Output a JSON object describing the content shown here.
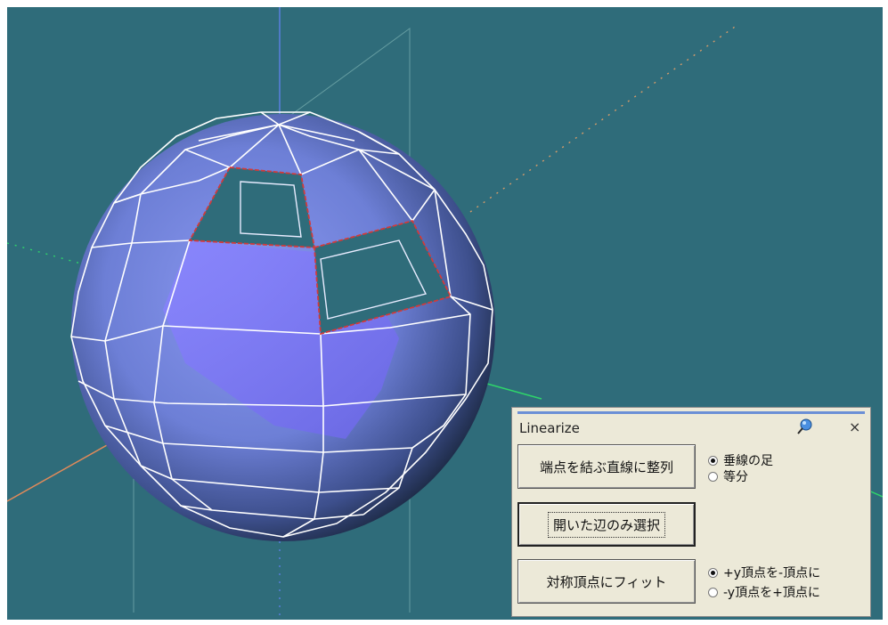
{
  "panel": {
    "title": "Linearize",
    "buttons": {
      "align": "端点を結ぶ直線に整列",
      "select_open": "開いた辺のみ選択",
      "fit_symmetric": "対称頂点にフィット"
    },
    "align_mode": {
      "options": [
        "垂線の足",
        "等分"
      ],
      "selected": 0
    },
    "fit_mode": {
      "options": [
        "+y頂点を-頂点に",
        "-y頂点を+頂点に"
      ],
      "selected": 0
    }
  },
  "icons": {
    "pin": "pin-icon",
    "close": "close-icon",
    "close_glyph": "×"
  },
  "colors": {
    "viewport_bg": "#2f6c7a",
    "mesh_fill": "#7b86e8",
    "mesh_edges": "#ffffff",
    "selected_edges": "#d23a3a",
    "axis_x": "#e08a5a",
    "axis_y": "#5a7fe0",
    "axis_z": "#2fd46a"
  }
}
